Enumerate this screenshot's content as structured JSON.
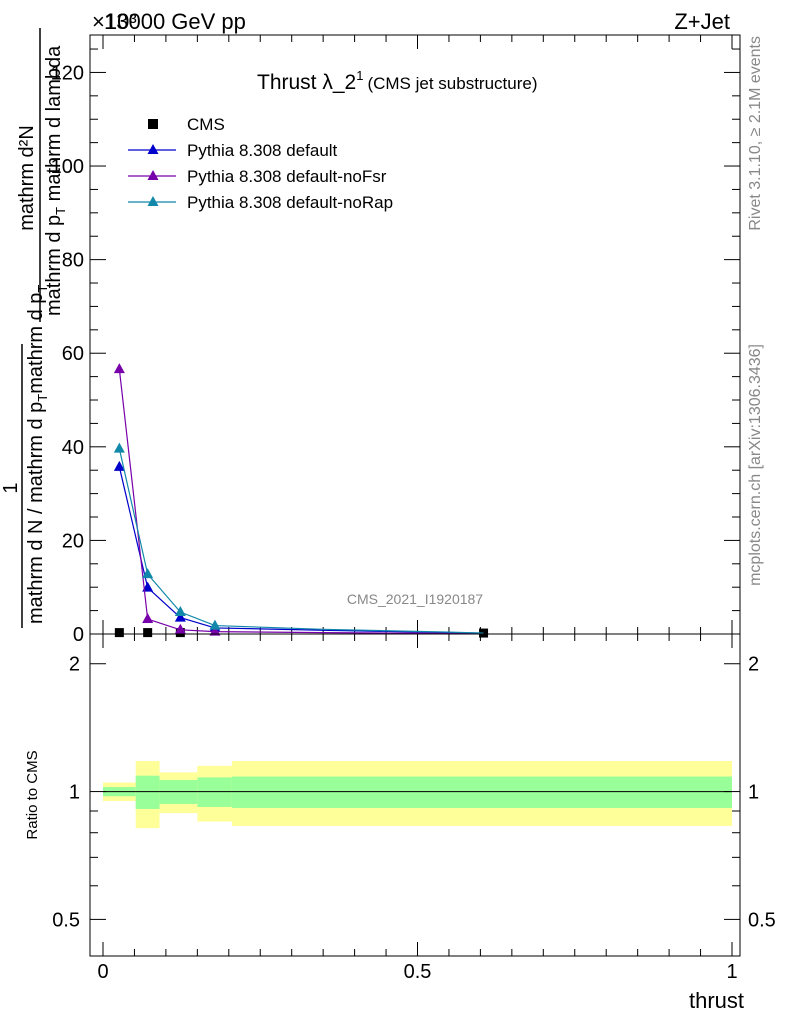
{
  "header": {
    "energy_label": "13000 GeV pp",
    "process_label": "Z+Jet",
    "exponent_label": "×10³",
    "watermark": "CMS_2021_I1920187",
    "side_rivet": "Rivet 3.1.10, ≥ 2.1M events",
    "side_mcplots": "mcplots.cern.ch [arXiv:1306.3436]"
  },
  "chart_data": [
    {
      "type": "line",
      "title": "Thrust λ_2",
      "title_sup": "1",
      "subtitle": "(CMS jet substructure)",
      "ylabel_parts": {
        "numer": "mathrm d²N",
        "numer_small": "2",
        "denom_a": "mathrm d p",
        "denom_sub": "T",
        "denom_b": " mathrm d lambda",
        "left_frac_numer": "1",
        "left_frac_denom_a": "mathrm d N / mathrm d p",
        "left_frac_denom_sub": "T",
        "left_frac_denom_b": "mathrm d p",
        "left_frac_denom_sub2": "T"
      },
      "xlim": [
        0,
        1
      ],
      "ylim": [
        0,
        128
      ],
      "yticks": [
        0,
        20,
        40,
        60,
        80,
        100,
        120
      ],
      "ytick_labels": [
        "0",
        "20",
        "40",
        "60",
        "80",
        "100",
        "120"
      ],
      "legend_position": "top-left",
      "series": [
        {
          "name": "CMS",
          "marker": "square",
          "color": "#000000",
          "x": [
            0.026,
            0.071,
            0.123,
            0.605
          ],
          "y": [
            0.3,
            0.3,
            0.3,
            0.2
          ]
        },
        {
          "name": "Pythia 8.308 default",
          "marker": "triangle",
          "color": "#0000cc",
          "x": [
            0.026,
            0.071,
            0.123,
            0.178,
            0.35,
            0.55,
            0.605
          ],
          "y": [
            35.7,
            9.9,
            3.5,
            1.3,
            0.8,
            0.3,
            0.2
          ]
        },
        {
          "name": "Pythia 8.308 default-noFsr",
          "marker": "triangle",
          "color": "#7700aa",
          "x": [
            0.026,
            0.071,
            0.123,
            0.178,
            0.35,
            0.55,
            0.605
          ],
          "y": [
            56.6,
            3.2,
            0.9,
            0.5,
            0.3,
            0.1,
            0.1
          ]
        },
        {
          "name": "Pythia 8.308 default-noRap",
          "marker": "triangle",
          "color": "#1188aa",
          "x": [
            0.026,
            0.071,
            0.123,
            0.178,
            0.35,
            0.55,
            0.605
          ],
          "y": [
            39.6,
            12.8,
            4.7,
            1.8,
            1.0,
            0.4,
            0.2
          ]
        }
      ]
    },
    {
      "type": "area",
      "ylabel": "Ratio to CMS",
      "xlabel": "thrust",
      "xlim": [
        0,
        1
      ],
      "ylim": [
        0.41,
        2.35
      ],
      "log_y": true,
      "yticks": [
        0.5,
        1,
        2
      ],
      "ytick_labels": [
        "0.5",
        "1",
        "2"
      ],
      "xticks": [
        0,
        0.5,
        1
      ],
      "xtick_labels": [
        "0",
        "0.5",
        "1"
      ],
      "reference_line": 1,
      "bins": [
        {
          "lo": 0.0,
          "hi": 0.052,
          "inner": [
            0.975,
            1.025
          ],
          "outer": [
            0.95,
            1.05
          ]
        },
        {
          "lo": 0.052,
          "hi": 0.09,
          "inner": [
            0.91,
            1.09
          ],
          "outer": [
            0.82,
            1.18
          ]
        },
        {
          "lo": 0.09,
          "hi": 0.15,
          "inner": [
            0.935,
            1.065
          ],
          "outer": [
            0.89,
            1.11
          ]
        },
        {
          "lo": 0.15,
          "hi": 0.205,
          "inner": [
            0.92,
            1.08
          ],
          "outer": [
            0.85,
            1.15
          ]
        },
        {
          "lo": 0.205,
          "hi": 1.0,
          "inner": [
            0.915,
            1.085
          ],
          "outer": [
            0.83,
            1.18
          ]
        }
      ]
    }
  ]
}
